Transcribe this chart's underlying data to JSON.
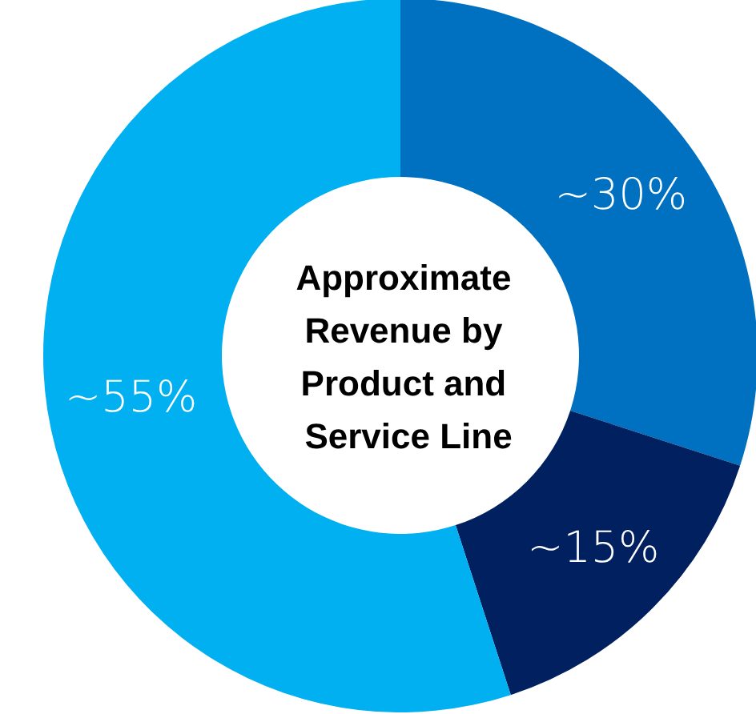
{
  "chart_data": {
    "type": "donut",
    "title": "Approximate Revenue by Product and Service Line",
    "categories": [
      null,
      null,
      null
    ],
    "values": [
      30,
      15,
      55
    ],
    "colors": [
      "#0070c0",
      "#002060",
      "#00b0f0"
    ],
    "value_labels": [
      "~30%",
      "~15%",
      "~55%"
    ]
  }
}
